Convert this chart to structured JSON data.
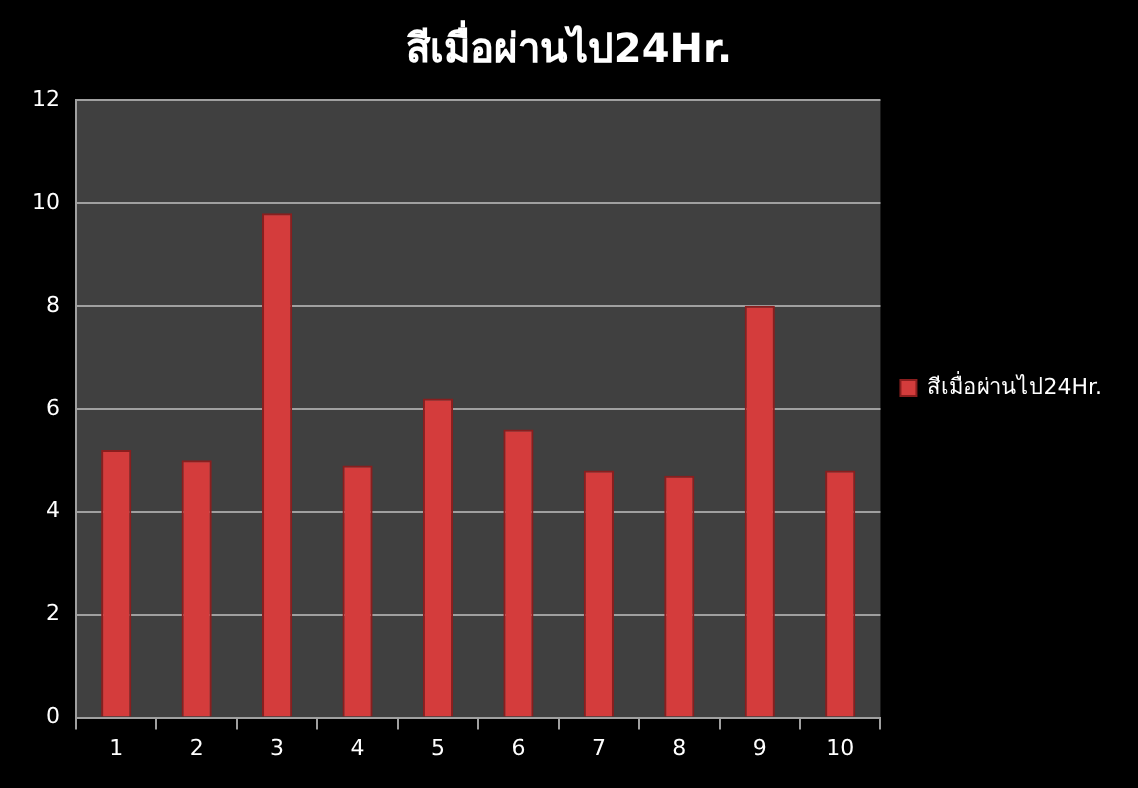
{
  "chart_data": {
    "type": "bar",
    "title": "สีเมื่อผ่านไป24Hr.",
    "categories": [
      "1",
      "2",
      "3",
      "4",
      "5",
      "6",
      "7",
      "8",
      "9",
      "10"
    ],
    "series": [
      {
        "name": "สีเมื่อผ่านไป24Hr.",
        "color": "#d43c3c",
        "values": [
          5.2,
          5.0,
          9.8,
          4.9,
          6.2,
          5.6,
          4.8,
          4.7,
          8.0,
          4.8
        ]
      }
    ],
    "ylim": [
      0,
      12
    ],
    "yticks": [
      0,
      2,
      4,
      6,
      8,
      10,
      12
    ],
    "grid": "y",
    "legend": "right"
  }
}
